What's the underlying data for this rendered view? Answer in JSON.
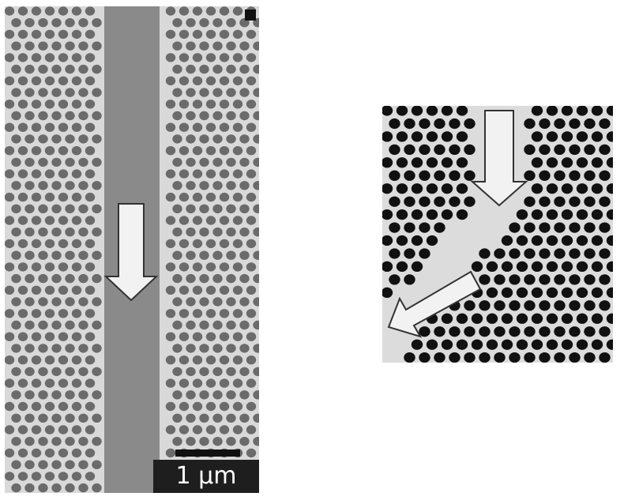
{
  "figure": {
    "badge_label": "",
    "scale_label": "1 μm",
    "colors": {
      "membrane": "#d9d9d9",
      "waveguide_channel": "#8a8a8a",
      "hole_left": "#6b6b6b",
      "hole_right": "#111111",
      "arrow_fill": "#f2f2f2",
      "arrow_stroke": "#333333"
    }
  }
}
